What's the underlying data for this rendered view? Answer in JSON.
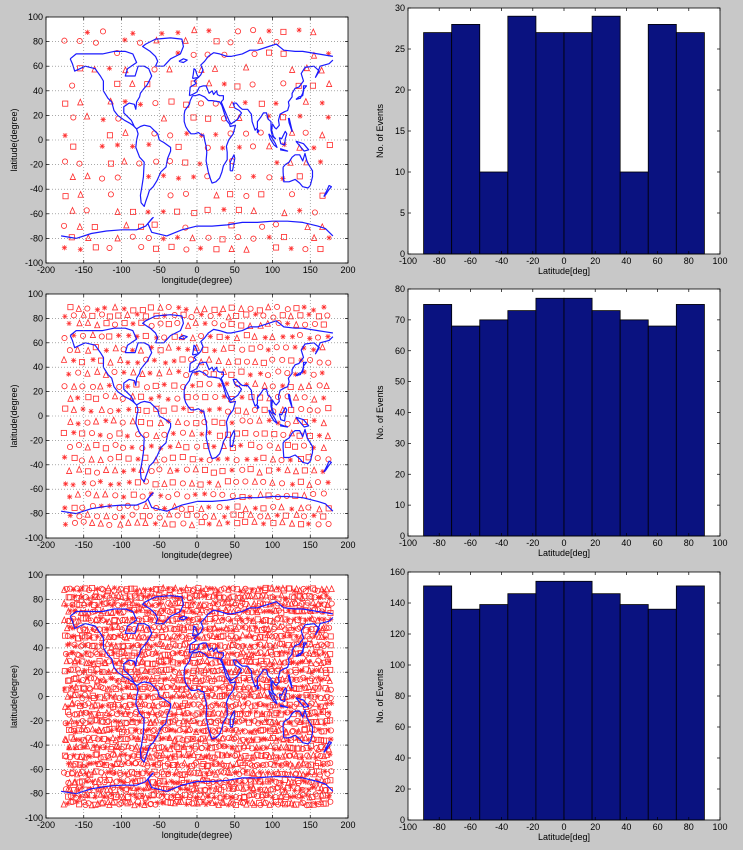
{
  "colors": {
    "background": "#c8c8c8",
    "axes_bg": "#ffffff",
    "bar_fill": "#0a1280",
    "coast": "#1a1aff",
    "marker": "#ff2a2a",
    "grid": "#777777"
  },
  "chart_data": [
    {
      "type": "scatter",
      "row": 0,
      "title": "",
      "xlabel": "longitude(degree)",
      "ylabel": "latitude(degree)",
      "xlim": [
        -200,
        200
      ],
      "ylim": [
        -100,
        100
      ],
      "xticks": [
        -200,
        -150,
        -100,
        -50,
        0,
        50,
        100,
        150,
        200
      ],
      "yticks": [
        -100,
        -80,
        -60,
        -40,
        -20,
        0,
        20,
        40,
        60,
        80,
        100
      ],
      "grid": true,
      "marker_color": "#ff2a2a",
      "density": "low"
    },
    {
      "type": "bar",
      "row": 0,
      "title": "",
      "xlabel": "Latitude[deg]",
      "ylabel": "No. of Events",
      "xlim": [
        -100,
        100
      ],
      "ylim": [
        0,
        30
      ],
      "xticks": [
        -100,
        -80,
        -60,
        -40,
        -20,
        0,
        20,
        40,
        60,
        80,
        100
      ],
      "yticks": [
        0,
        5,
        10,
        15,
        20,
        25,
        30
      ],
      "bin_edges": [
        -90,
        -72,
        -54,
        -36,
        -18,
        0,
        18,
        36,
        54,
        72,
        90
      ],
      "values": [
        27,
        28,
        10,
        29,
        27,
        27,
        29,
        10,
        28,
        27
      ]
    },
    {
      "type": "scatter",
      "row": 1,
      "title": "",
      "xlabel": "longitude(degree)",
      "ylabel": "latitude(degree)",
      "xlim": [
        -200,
        200
      ],
      "ylim": [
        -100,
        100
      ],
      "xticks": [
        -200,
        -150,
        -100,
        -50,
        0,
        50,
        100,
        150,
        200
      ],
      "yticks": [
        -100,
        -80,
        -60,
        -40,
        -20,
        0,
        20,
        40,
        60,
        80,
        100
      ],
      "grid": true,
      "marker_color": "#ff2a2a",
      "density": "medium"
    },
    {
      "type": "bar",
      "row": 1,
      "title": "",
      "xlabel": "Latitude[deg]",
      "ylabel": "No. of Events",
      "xlim": [
        -100,
        100
      ],
      "ylim": [
        0,
        80
      ],
      "xticks": [
        -100,
        -80,
        -60,
        -40,
        -20,
        0,
        20,
        40,
        60,
        80,
        100
      ],
      "yticks": [
        0,
        10,
        20,
        30,
        40,
        50,
        60,
        70,
        80
      ],
      "bin_edges": [
        -90,
        -72,
        -54,
        -36,
        -18,
        0,
        18,
        36,
        54,
        72,
        90
      ],
      "values": [
        75,
        68,
        70,
        73,
        77,
        77,
        73,
        70,
        68,
        75
      ]
    },
    {
      "type": "scatter",
      "row": 2,
      "title": "",
      "xlabel": "longitude(degree)",
      "ylabel": "latitude(degree)",
      "xlim": [
        -200,
        200
      ],
      "ylim": [
        -100,
        100
      ],
      "xticks": [
        -200,
        -150,
        -100,
        -50,
        0,
        50,
        100,
        150,
        200
      ],
      "yticks": [
        -100,
        -80,
        -60,
        -40,
        -20,
        0,
        20,
        40,
        60,
        80,
        100
      ],
      "grid": true,
      "marker_color": "#ff2a2a",
      "density": "high"
    },
    {
      "type": "bar",
      "row": 2,
      "title": "",
      "xlabel": "Latitude[deg]",
      "ylabel": "No. of Events",
      "xlim": [
        -100,
        100
      ],
      "ylim": [
        0,
        160
      ],
      "xticks": [
        -100,
        -80,
        -60,
        -40,
        -20,
        0,
        20,
        40,
        60,
        80,
        100
      ],
      "yticks": [
        0,
        20,
        40,
        60,
        80,
        100,
        120,
        140,
        160
      ],
      "bin_edges": [
        -90,
        -72,
        -54,
        -36,
        -18,
        0,
        18,
        36,
        54,
        72,
        90
      ],
      "values": [
        151,
        136,
        139,
        146,
        154,
        154,
        146,
        139,
        136,
        151
      ]
    }
  ]
}
